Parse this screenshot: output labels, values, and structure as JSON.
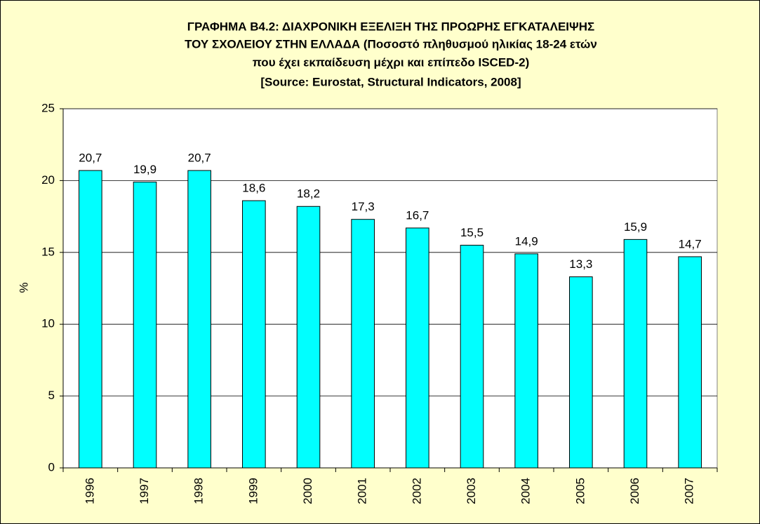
{
  "chart_data": {
    "type": "bar",
    "title": [
      "ΓΡΑΦΗΜΑ Β4.2: ΔΙΑΧΡΟΝΙΚΗ ΕΞΕΛΙΞΗ ΤΗΣ ΠΡΟΩΡΗΣ ΕΓΚΑΤΑΛΕΙΨΗΣ",
      "ΤΟΥ ΣΧΟΛΕΙΟΥ ΣΤΗΝ ΕΛΛΑΔΑ (Ποσοστό πληθυσμού ηλικίας 18-24 ετών",
      "που έχει εκπαίδευση μέχρι και επίπεδο ISCED-2)",
      "[Source: Eurostat, Structural Indicators, 2008]"
    ],
    "y_label": "%",
    "categories": [
      "1996",
      "1997",
      "1998",
      "1999",
      "2000",
      "2001",
      "2002",
      "2003",
      "2004",
      "2005",
      "2006",
      "2007"
    ],
    "values": [
      20.7,
      19.9,
      20.7,
      18.6,
      18.2,
      17.3,
      16.7,
      15.5,
      14.9,
      13.3,
      15.9,
      14.7
    ],
    "value_labels": [
      "20,7",
      "19,9",
      "20,7",
      "18,6",
      "18,2",
      "17,3",
      "16,7",
      "15,5",
      "14,9",
      "13,3",
      "15,9",
      "14,7"
    ],
    "color": "#00ffff",
    "ylim": [
      0,
      25
    ],
    "yticks": [
      0,
      5,
      10,
      15,
      20,
      25
    ],
    "grid": true
  }
}
